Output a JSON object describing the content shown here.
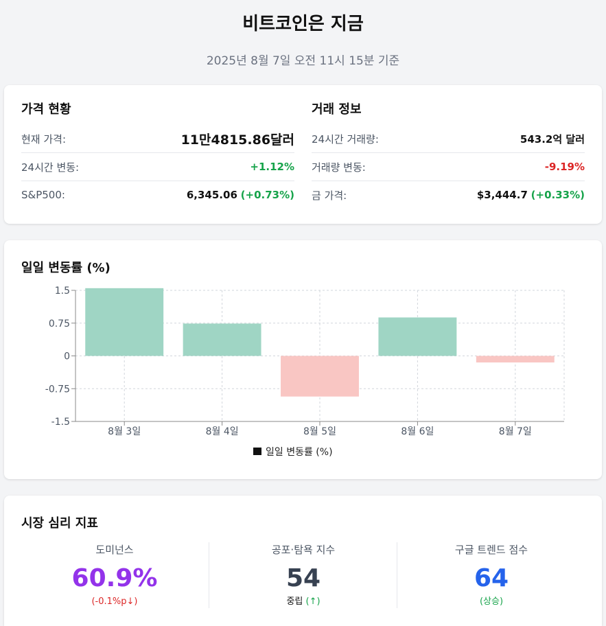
{
  "header": {
    "title": "비트코인은 지금",
    "subtitle": "2025년 8월 7일 오전 11시 15분 기준"
  },
  "price_status": {
    "title": "가격 현황",
    "current_price_label": "현재 가격:",
    "current_price_value": "11만4815.86달러",
    "change_24h_label": "24시간 변동:",
    "change_24h_value": "+1.12%",
    "sp500_label": "S&P500:",
    "sp500_value": "6,345.06",
    "sp500_change": "(+0.73%)"
  },
  "trade_info": {
    "title": "거래 정보",
    "volume_label": "24시간 거래량:",
    "volume_value": "543.2억 달러",
    "volume_change_label": "거래량 변동:",
    "volume_change_value": "-9.19%",
    "gold_label": "금 가격:",
    "gold_value": "$3,444.7",
    "gold_change": "(+0.33%)"
  },
  "chart_section": {
    "title": "일일 변동률 (%)"
  },
  "chart_data": {
    "type": "bar",
    "categories": [
      "8월 3일",
      "8월 4일",
      "8월 5일",
      "8월 6일",
      "8월 7일"
    ],
    "series": [
      {
        "name": "일일 변동률 (%)",
        "values": [
          1.55,
          0.74,
          -0.93,
          0.88,
          -0.15
        ]
      }
    ],
    "title": "",
    "xlabel": "",
    "ylabel": "",
    "ylim": [
      -1.5,
      1.5
    ],
    "yticks": [
      "1.5",
      "0.75",
      "0",
      "-0.75",
      "-1.5"
    ],
    "grid": true,
    "legend": "bottom",
    "colors": {
      "positive": "#9fd5c4",
      "negative": "#f9c6c3",
      "legend_swatch": "#111111"
    }
  },
  "sentiment": {
    "title": "시장 심리 지표",
    "dominance_label": "도미넌스",
    "dominance_value": "60.9%",
    "dominance_change": "(-0.1%p↓)",
    "fear_greed_label": "공포·탐욕 지수",
    "fear_greed_value": "54",
    "fear_greed_state": "중립",
    "fear_greed_trend": "(↑)",
    "google_trend_label": "구글 트렌드 점수",
    "google_trend_value": "64",
    "google_trend_change": "(상승)"
  }
}
